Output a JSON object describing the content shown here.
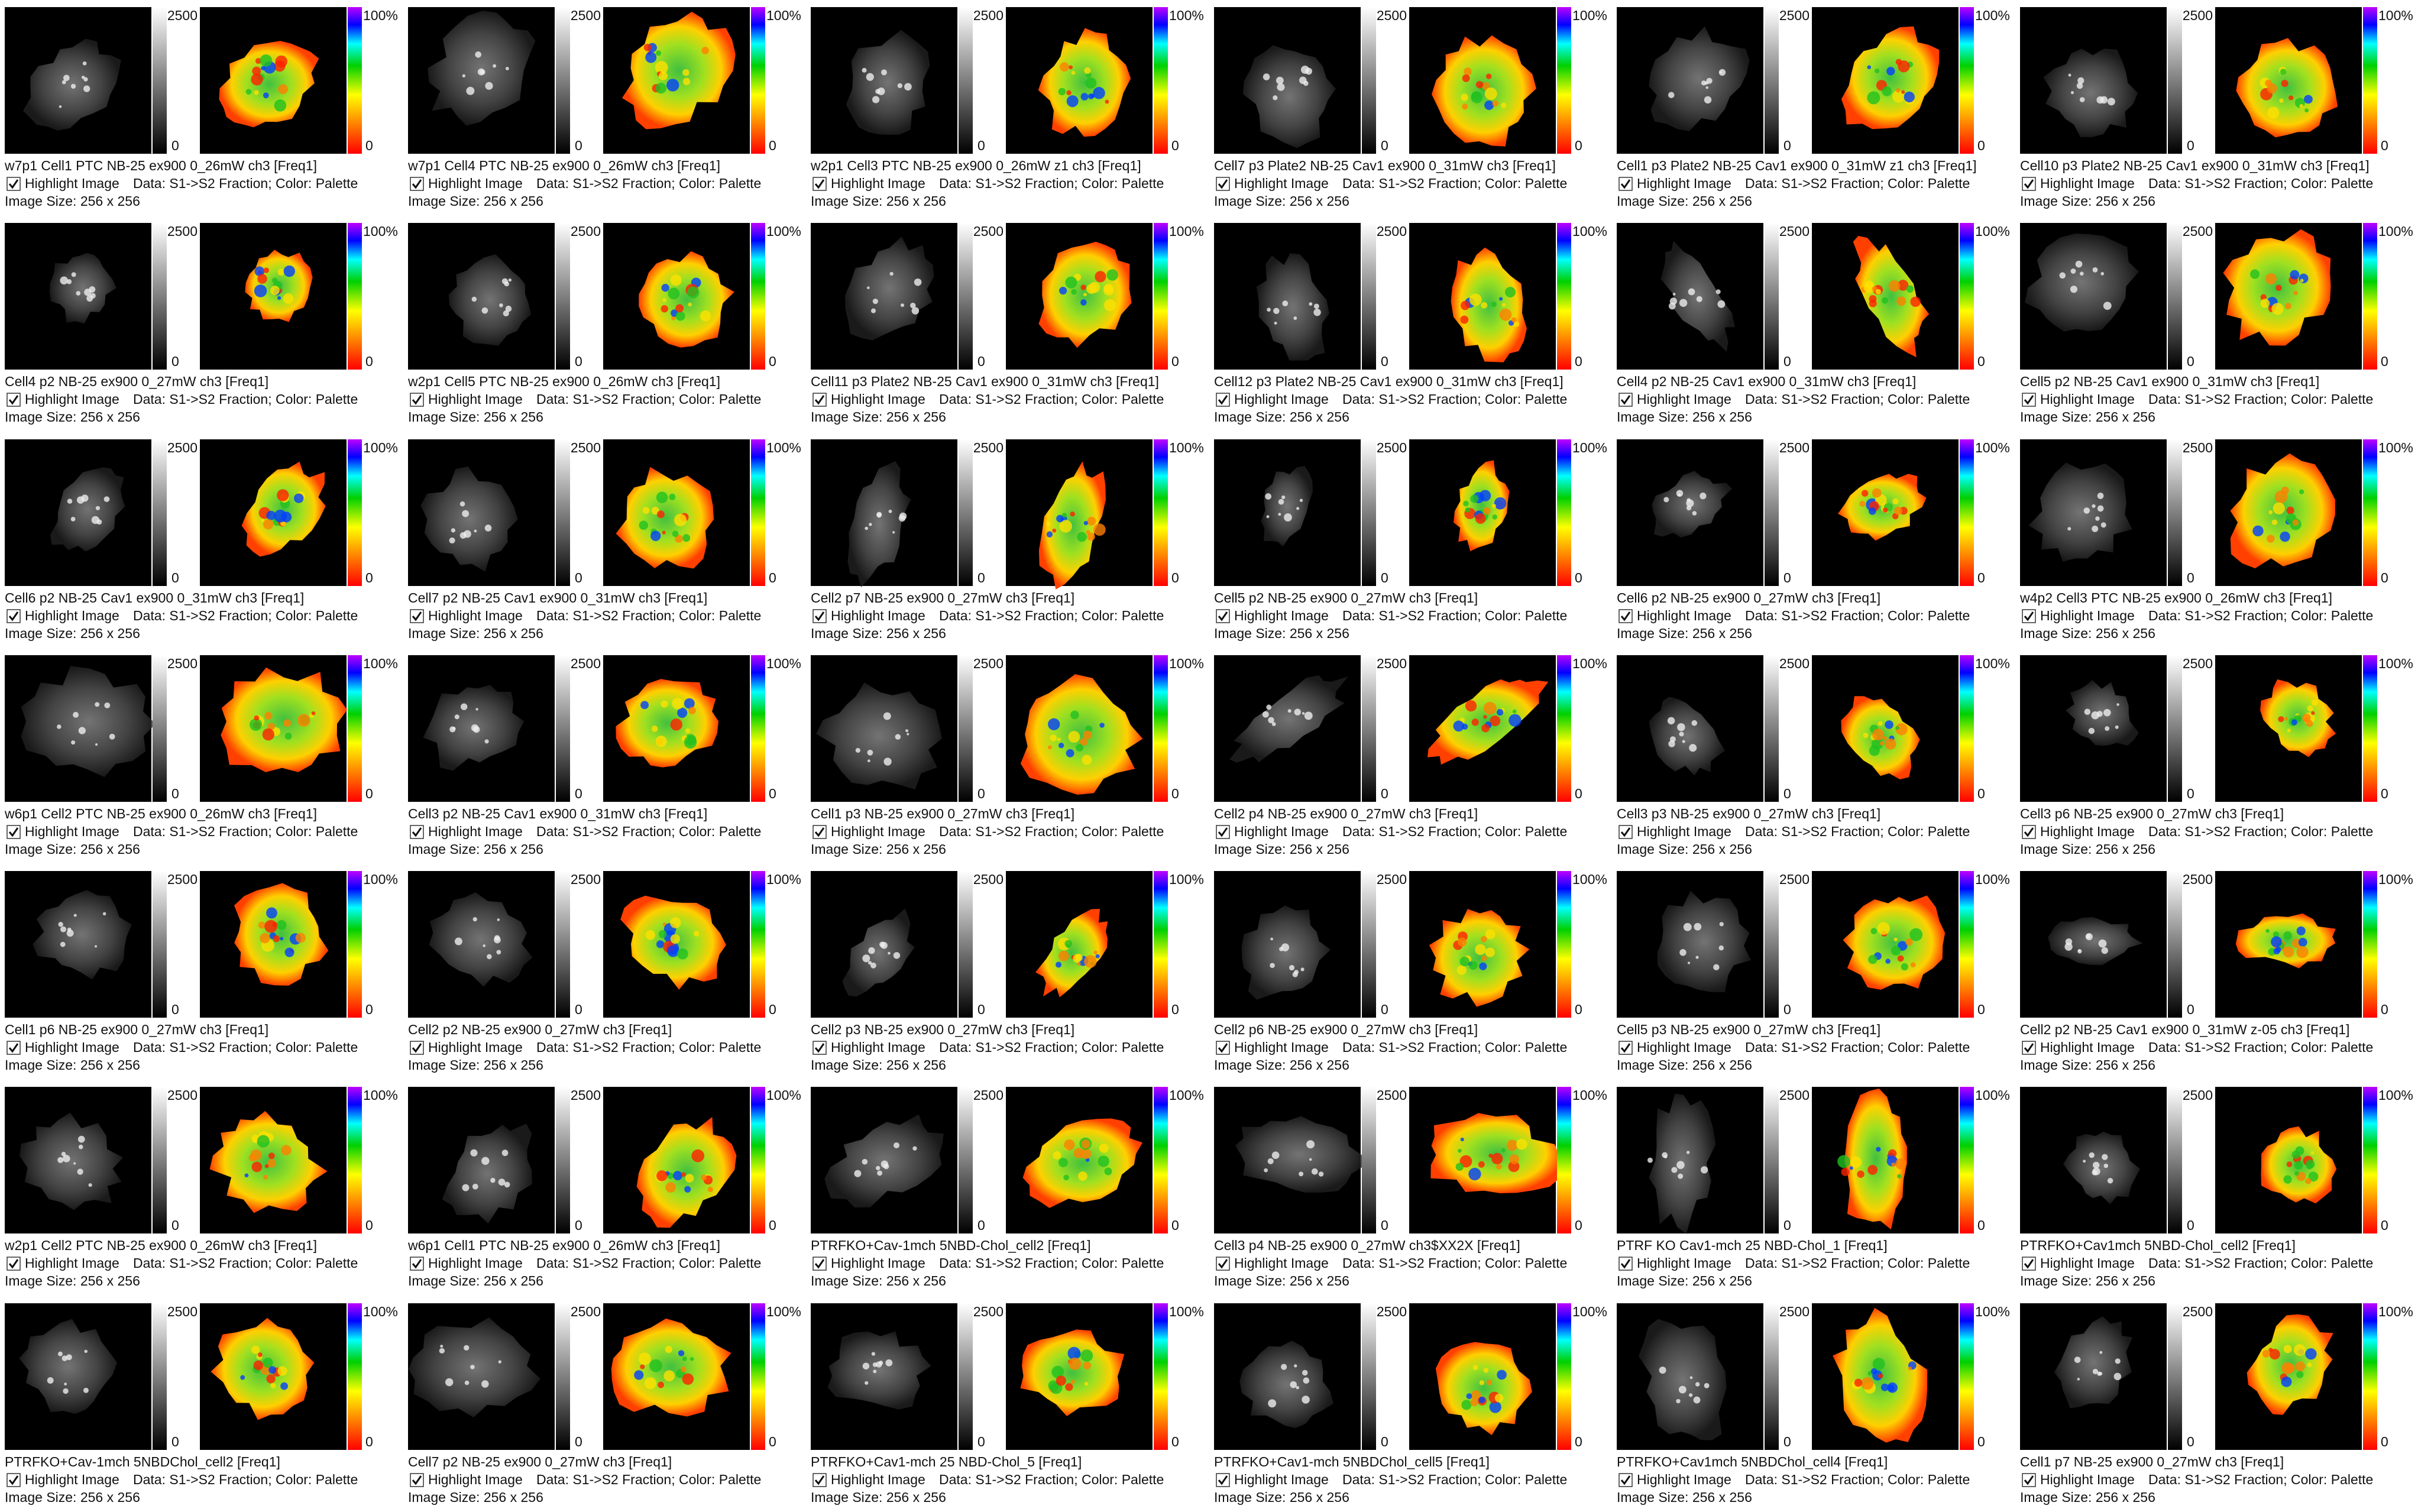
{
  "common": {
    "gray_max": "2500",
    "gray_min": "0",
    "palette_max": "100%",
    "palette_min": "0",
    "checkbox_label": "Highlight Image",
    "data_info": "Data: S1->S2 Fraction;  Color: Palette",
    "image_size": "Image Size:  256  x  256"
  },
  "tiles": [
    {
      "caption": "w7p1 Cell1 PTC NB-25 ex900 0_26mW ch3 [Freq1]"
    },
    {
      "caption": "w7p1 Cell4 PTC NB-25 ex900 0_26mW ch3 [Freq1]"
    },
    {
      "caption": "w2p1 Cell3 PTC NB-25 ex900 0_26mW z1 ch3 [Freq1]"
    },
    {
      "caption": "Cell7 p3  Plate2 NB-25 Cav1 ex900 0_31mW ch3 [Freq1]"
    },
    {
      "caption": "Cell1 p3  Plate2 NB-25 Cav1 ex900 0_31mW z1 ch3 [Freq1]"
    },
    {
      "caption": "Cell10 p3  Plate2 NB-25 Cav1 ex900 0_31mW ch3 [Freq1]"
    },
    {
      "caption": "Cell4 p2 NB-25 ex900 0_27mW ch3 [Freq1]"
    },
    {
      "caption": "w2p1 Cell5 PTC NB-25 ex900 0_26mW ch3 [Freq1]"
    },
    {
      "caption": "Cell11 p3  Plate2 NB-25 Cav1 ex900 0_31mW ch3 [Freq1]"
    },
    {
      "caption": "Cell12 p3  Plate2 NB-25 Cav1 ex900 0_31mW ch3 [Freq1]"
    },
    {
      "caption": "Cell4 p2 NB-25 Cav1 ex900 0_31mW ch3 [Freq1]"
    },
    {
      "caption": "Cell5 p2 NB-25 Cav1 ex900 0_31mW ch3 [Freq1]"
    },
    {
      "caption": "Cell6 p2 NB-25 Cav1 ex900 0_31mW ch3 [Freq1]"
    },
    {
      "caption": "Cell7 p2 NB-25 Cav1 ex900 0_31mW ch3 [Freq1]"
    },
    {
      "caption": "Cell2 p7 NB-25 ex900 0_27mW ch3 [Freq1]"
    },
    {
      "caption": "Cell5 p2 NB-25 ex900 0_27mW ch3 [Freq1]"
    },
    {
      "caption": "Cell6 p2 NB-25 ex900 0_27mW ch3 [Freq1]"
    },
    {
      "caption": "w4p2 Cell3 PTC NB-25 ex900 0_26mW ch3 [Freq1]"
    },
    {
      "caption": "w6p1 Cell2 PTC NB-25 ex900 0_26mW ch3 [Freq1]"
    },
    {
      "caption": "Cell3 p2 NB-25 Cav1 ex900 0_31mW ch3 [Freq1]"
    },
    {
      "caption": "Cell1 p3 NB-25 ex900 0_27mW ch3 [Freq1]"
    },
    {
      "caption": "Cell2 p4 NB-25 ex900 0_27mW ch3 [Freq1]"
    },
    {
      "caption": "Cell3 p3 NB-25 ex900 0_27mW ch3 [Freq1]"
    },
    {
      "caption": "Cell3 p6 NB-25 ex900 0_27mW ch3 [Freq1]"
    },
    {
      "caption": "Cell1 p6 NB-25 ex900 0_27mW ch3 [Freq1]"
    },
    {
      "caption": "Cell2 p2 NB-25 ex900 0_27mW ch3 [Freq1]"
    },
    {
      "caption": "Cell2 p3 NB-25 ex900 0_27mW ch3 [Freq1]"
    },
    {
      "caption": "Cell2 p6 NB-25 ex900 0_27mW ch3 [Freq1]"
    },
    {
      "caption": "Cell5 p3 NB-25 ex900 0_27mW ch3 [Freq1]"
    },
    {
      "caption": "Cell2 p2 NB-25 Cav1 ex900 0_31mW z-05 ch3 [Freq1]"
    },
    {
      "caption": "w2p1 Cell2 PTC NB-25 ex900 0_26mW ch3 [Freq1]"
    },
    {
      "caption": "w6p1 Cell1 PTC NB-25 ex900 0_26mW ch3 [Freq1]"
    },
    {
      "caption": "PTRFKO+Cav-1mch 5NBD-Chol_cell2 [Freq1]"
    },
    {
      "caption": "Cell3 p4 NB-25 ex900 0_27mW ch3$XX2X [Freq1]"
    },
    {
      "caption": "PTRF KO Cav1-mch 25 NBD-Chol_1 [Freq1]"
    },
    {
      "caption": "PTRFKO+Cav1mch 5NBD-Chol_cell2 [Freq1]"
    },
    {
      "caption": "PTRFKO+Cav-1mch 5NBDChol_cell2 [Freq1]"
    },
    {
      "caption": "Cell7 p2 NB-25 ex900 0_27mW ch3 [Freq1]"
    },
    {
      "caption": "PTRFKO+Cav1-mch 25 NBD-Chol_5 [Freq1]"
    },
    {
      "caption": "PTRFKO+Cav1-mch 5NBDChol_cell5 [Freq1]"
    },
    {
      "caption": "PTRFKO+Cav1mch 5NBDChol_cell4 [Freq1]"
    },
    {
      "caption": "Cell1 p7 NB-25 ex900 0_27mW ch3 [Freq1]"
    }
  ]
}
